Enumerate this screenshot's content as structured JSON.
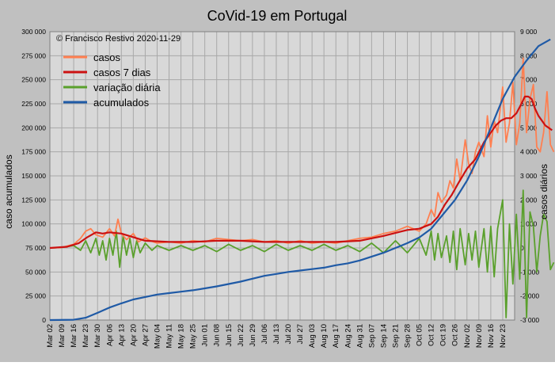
{
  "chart_data": {
    "type": "line",
    "title": "CoVid-19 em Portugal",
    "annotation": "© Francisco Restivo 2020-11-29",
    "ylabel_left": "caso acumulados",
    "ylabel_right": "casos diários",
    "xlabel": "",
    "ylim_left": [
      0,
      300000
    ],
    "ylim_right": [
      -3000,
      9000
    ],
    "yticks_left": [
      "0",
      "25 000",
      "50 000",
      "75 000",
      "100 000",
      "125 000",
      "150 000",
      "175 000",
      "200 000",
      "225 000",
      "250 000",
      "275 000",
      "300 000"
    ],
    "yticks_right": [
      "-3 000",
      "-2 000",
      "-1 000",
      "0",
      "1 000",
      "2 000",
      "3 000",
      "4 000",
      "5 000",
      "6 000",
      "7 000",
      "8 000",
      "9 000"
    ],
    "x_tick_labels": [
      "Mar 02",
      "Mar 09",
      "Mar 16",
      "Mar 23",
      "Mar 30",
      "Apr 06",
      "Apr 13",
      "Apr 20",
      "Apr 27",
      "May 04",
      "May 11",
      "May 18",
      "May 25",
      "Jun 01",
      "Jun 08",
      "Jun 15",
      "Jun 22",
      "Jun 29",
      "Jul 06",
      "Jul 13",
      "Jul 20",
      "Jul 27",
      "Aug 03",
      "Aug 10",
      "Aug 17",
      "Aug 24",
      "Aug 31",
      "Sep 07",
      "Sep 14",
      "Sep 21",
      "Sep 28",
      "Oct 05",
      "Oct 12",
      "Oct 19",
      "Oct 26",
      "Nov 02",
      "Nov 09",
      "Nov 16",
      "Nov 23"
    ],
    "grid": true,
    "legend_position": "top-left",
    "series": [
      {
        "name": "casos",
        "color": "#ff7f50",
        "axis": "right",
        "points": [
          [
            0,
            0
          ],
          [
            7,
            20
          ],
          [
            14,
            150
          ],
          [
            18,
            400
          ],
          [
            21,
            700
          ],
          [
            24,
            800
          ],
          [
            27,
            550
          ],
          [
            31,
            450
          ],
          [
            35,
            800
          ],
          [
            38,
            500
          ],
          [
            40,
            1200
          ],
          [
            42,
            600
          ],
          [
            45,
            350
          ],
          [
            49,
            600
          ],
          [
            52,
            250
          ],
          [
            56,
            420
          ],
          [
            59,
            300
          ],
          [
            63,
            200
          ],
          [
            70,
            250
          ],
          [
            77,
            200
          ],
          [
            84,
            300
          ],
          [
            91,
            250
          ],
          [
            98,
            400
          ],
          [
            105,
            350
          ],
          [
            112,
            300
          ],
          [
            119,
            350
          ],
          [
            126,
            250
          ],
          [
            133,
            300
          ],
          [
            140,
            200
          ],
          [
            147,
            300
          ],
          [
            154,
            200
          ],
          [
            161,
            250
          ],
          [
            168,
            200
          ],
          [
            175,
            300
          ],
          [
            182,
            400
          ],
          [
            189,
            450
          ],
          [
            196,
            600
          ],
          [
            203,
            700
          ],
          [
            210,
            900
          ],
          [
            217,
            700
          ],
          [
            221,
            1000
          ],
          [
            224,
            1600
          ],
          [
            226,
            1300
          ],
          [
            228,
            2300
          ],
          [
            230,
            1900
          ],
          [
            233,
            2200
          ],
          [
            235,
            2800
          ],
          [
            237,
            2500
          ],
          [
            239,
            3700
          ],
          [
            241,
            2800
          ],
          [
            244,
            4500
          ],
          [
            246,
            3500
          ],
          [
            248,
            3100
          ],
          [
            250,
            4000
          ],
          [
            252,
            4400
          ],
          [
            255,
            3800
          ],
          [
            257,
            5500
          ],
          [
            259,
            4200
          ],
          [
            261,
            5300
          ],
          [
            263,
            4800
          ],
          [
            266,
            6700
          ],
          [
            268,
            4400
          ],
          [
            270,
            5200
          ],
          [
            272,
            6900
          ],
          [
            274,
            4300
          ],
          [
            276,
            5200
          ],
          [
            278,
            7900
          ],
          [
            280,
            4800
          ],
          [
            282,
            6200
          ],
          [
            284,
            6800
          ],
          [
            286,
            4200
          ],
          [
            288,
            4000
          ],
          [
            290,
            4800
          ],
          [
            292,
            6500
          ],
          [
            294,
            4300
          ],
          [
            296,
            4000
          ]
        ]
      },
      {
        "name": "casos 7 dias",
        "color": "#cc1111",
        "axis": "right",
        "points": [
          [
            0,
            0
          ],
          [
            10,
            50
          ],
          [
            17,
            200
          ],
          [
            22,
            450
          ],
          [
            27,
            650
          ],
          [
            31,
            600
          ],
          [
            35,
            650
          ],
          [
            42,
            600
          ],
          [
            49,
            450
          ],
          [
            56,
            300
          ],
          [
            70,
            250
          ],
          [
            84,
            250
          ],
          [
            98,
            300
          ],
          [
            112,
            300
          ],
          [
            126,
            250
          ],
          [
            140,
            250
          ],
          [
            154,
            250
          ],
          [
            168,
            250
          ],
          [
            182,
            300
          ],
          [
            196,
            500
          ],
          [
            210,
            750
          ],
          [
            217,
            800
          ],
          [
            224,
            1000
          ],
          [
            228,
            1300
          ],
          [
            232,
            1800
          ],
          [
            236,
            2200
          ],
          [
            240,
            2700
          ],
          [
            245,
            3300
          ],
          [
            250,
            3700
          ],
          [
            255,
            4400
          ],
          [
            259,
            4800
          ],
          [
            262,
            5100
          ],
          [
            265,
            5300
          ],
          [
            268,
            5400
          ],
          [
            271,
            5400
          ],
          [
            274,
            5600
          ],
          [
            277,
            6000
          ],
          [
            279,
            6300
          ],
          [
            281,
            6300
          ],
          [
            283,
            6200
          ],
          [
            285,
            5800
          ],
          [
            287,
            5500
          ],
          [
            289,
            5300
          ],
          [
            291,
            5100
          ],
          [
            293,
            5000
          ],
          [
            295,
            4900
          ]
        ]
      },
      {
        "name": "variação diária",
        "color": "#5aa02c",
        "axis": "right",
        "points": [
          [
            0,
            0
          ],
          [
            7,
            20
          ],
          [
            14,
            100
          ],
          [
            18,
            -100
          ],
          [
            21,
            300
          ],
          [
            24,
            -200
          ],
          [
            27,
            400
          ],
          [
            29,
            -300
          ],
          [
            31,
            300
          ],
          [
            33,
            -500
          ],
          [
            35,
            400
          ],
          [
            37,
            -300
          ],
          [
            39,
            700
          ],
          [
            41,
            -800
          ],
          [
            43,
            500
          ],
          [
            45,
            -300
          ],
          [
            47,
            400
          ],
          [
            49,
            -400
          ],
          [
            51,
            300
          ],
          [
            53,
            -200
          ],
          [
            56,
            200
          ],
          [
            60,
            -100
          ],
          [
            63,
            100
          ],
          [
            70,
            -100
          ],
          [
            77,
            100
          ],
          [
            84,
            -100
          ],
          [
            91,
            100
          ],
          [
            98,
            -150
          ],
          [
            105,
            150
          ],
          [
            112,
            -100
          ],
          [
            119,
            100
          ],
          [
            126,
            -150
          ],
          [
            133,
            150
          ],
          [
            140,
            -100
          ],
          [
            147,
            100
          ],
          [
            154,
            -100
          ],
          [
            161,
            150
          ],
          [
            168,
            -100
          ],
          [
            175,
            100
          ],
          [
            182,
            -150
          ],
          [
            189,
            200
          ],
          [
            196,
            -200
          ],
          [
            203,
            300
          ],
          [
            210,
            -200
          ],
          [
            217,
            400
          ],
          [
            221,
            -300
          ],
          [
            224,
            700
          ],
          [
            226,
            -500
          ],
          [
            228,
            600
          ],
          [
            230,
            -400
          ],
          [
            233,
            500
          ],
          [
            235,
            -600
          ],
          [
            237,
            700
          ],
          [
            239,
            -900
          ],
          [
            241,
            800
          ],
          [
            244,
            -700
          ],
          [
            246,
            600
          ],
          [
            248,
            -500
          ],
          [
            250,
            700
          ],
          [
            252,
            -800
          ],
          [
            255,
            800
          ],
          [
            257,
            -1000
          ],
          [
            259,
            900
          ],
          [
            261,
            -1200
          ],
          [
            263,
            800
          ],
          [
            266,
            2000
          ],
          [
            268,
            -2900
          ],
          [
            270,
            1000
          ],
          [
            272,
            -1500
          ],
          [
            274,
            1400
          ],
          [
            276,
            -1300
          ],
          [
            278,
            2400
          ],
          [
            280,
            -2900
          ],
          [
            282,
            1500
          ],
          [
            284,
            900
          ],
          [
            286,
            -1000
          ],
          [
            288,
            500
          ],
          [
            290,
            1400
          ],
          [
            292,
            1100
          ],
          [
            294,
            -900
          ],
          [
            296,
            -600
          ]
        ]
      },
      {
        "name": "acumulados",
        "color": "#1f5aa6",
        "axis": "left",
        "points": [
          [
            0,
            0
          ],
          [
            14,
            300
          ],
          [
            21,
            2400
          ],
          [
            28,
            7500
          ],
          [
            35,
            13000
          ],
          [
            42,
            17400
          ],
          [
            49,
            21400
          ],
          [
            56,
            24000
          ],
          [
            63,
            26500
          ],
          [
            70,
            28000
          ],
          [
            77,
            29500
          ],
          [
            84,
            31000
          ],
          [
            91,
            33000
          ],
          [
            98,
            35000
          ],
          [
            105,
            37500
          ],
          [
            112,
            40000
          ],
          [
            119,
            43000
          ],
          [
            126,
            46000
          ],
          [
            133,
            48000
          ],
          [
            140,
            50000
          ],
          [
            147,
            51500
          ],
          [
            154,
            53000
          ],
          [
            161,
            54500
          ],
          [
            168,
            57000
          ],
          [
            175,
            59000
          ],
          [
            182,
            62000
          ],
          [
            189,
            66000
          ],
          [
            196,
            70000
          ],
          [
            203,
            75000
          ],
          [
            210,
            80000
          ],
          [
            217,
            86000
          ],
          [
            224,
            95000
          ],
          [
            231,
            110000
          ],
          [
            238,
            125000
          ],
          [
            245,
            145000
          ],
          [
            252,
            170000
          ],
          [
            259,
            200000
          ],
          [
            266,
            230000
          ],
          [
            273,
            253000
          ],
          [
            280,
            270000
          ],
          [
            287,
            285000
          ],
          [
            294,
            292000
          ]
        ]
      }
    ]
  }
}
